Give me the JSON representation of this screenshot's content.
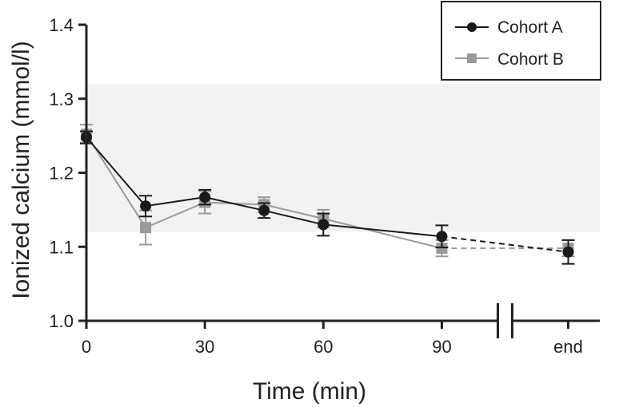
{
  "chart_data": {
    "type": "line",
    "title": "",
    "xlabel": "Time (min)",
    "ylabel": "Ionized calcium (mmol/l)",
    "ylim": [
      1.0,
      1.4
    ],
    "yticks": [
      1.0,
      1.1,
      1.2,
      1.3,
      1.4
    ],
    "ytick_labels": [
      "1.0",
      "1.1",
      "1.2",
      "1.3",
      "1.4"
    ],
    "xlim": [
      0,
      130
    ],
    "xticks": [
      0,
      30,
      60,
      90,
      122
    ],
    "xtick_labels": [
      "0",
      "30",
      "60",
      "90",
      "end"
    ],
    "axis_break_at": 106,
    "reference_band": {
      "y_min": 1.12,
      "y_max": 1.32,
      "color": "#f2f2f2"
    },
    "legend_position": "top-right",
    "series": [
      {
        "name": "Cohort A",
        "marker": "circle",
        "color": "#1a1a1a",
        "x": [
          0,
          15,
          30,
          45,
          60,
          90,
          122
        ],
        "values": [
          1.248,
          1.155,
          1.167,
          1.149,
          1.13,
          1.114,
          1.093
        ],
        "error": [
          0.008,
          0.014,
          0.01,
          0.01,
          0.015,
          0.015,
          0.016
        ],
        "dashed_last_segment": true
      },
      {
        "name": "Cohort B",
        "marker": "square",
        "color": "#9a9a9a",
        "x": [
          0,
          15,
          30,
          45,
          60,
          90,
          122
        ],
        "values": [
          1.252,
          1.126,
          1.16,
          1.157,
          1.138,
          1.098,
          1.098
        ],
        "error": [
          0.013,
          0.023,
          0.015,
          0.01,
          0.012,
          0.011,
          0.011
        ],
        "dashed_last_segment": true
      }
    ]
  }
}
